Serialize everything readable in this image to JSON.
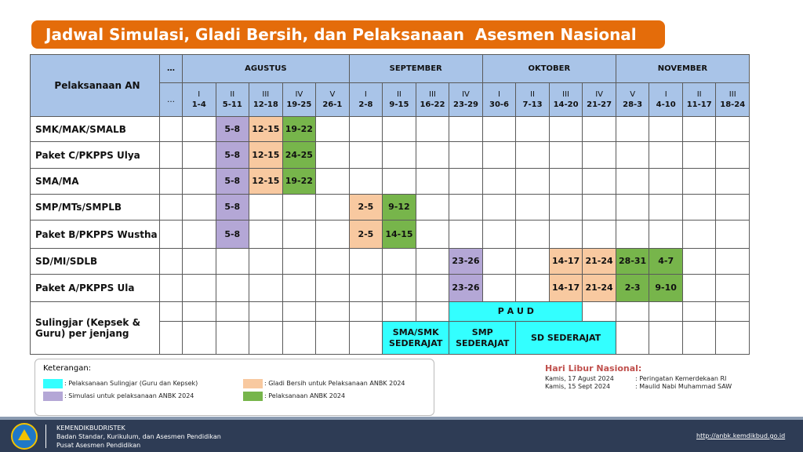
{
  "title": "Jadwal Simulasi, Gladi Bersih, dan Pelaksanaan  Asesmen Nasional",
  "table": {
    "header": "Pelaksanaan AN",
    "ellipsis": [
      "…",
      "…"
    ],
    "months": [
      {
        "name": "AGUSTUS",
        "weeks": [
          {
            "roman": "I",
            "dates": "1-4"
          },
          {
            "roman": "II",
            "dates": "5-11"
          },
          {
            "roman": "III",
            "dates": "12-18"
          },
          {
            "roman": "IV",
            "dates": "19-25"
          },
          {
            "roman": "V",
            "dates": "26-1"
          }
        ]
      },
      {
        "name": "SEPTEMBER",
        "weeks": [
          {
            "roman": "I",
            "dates": "2-8"
          },
          {
            "roman": "II",
            "dates": "9-15"
          },
          {
            "roman": "III",
            "dates": "16-22"
          },
          {
            "roman": "IV",
            "dates": "23-29"
          }
        ]
      },
      {
        "name": "OKTOBER",
        "weeks": [
          {
            "roman": "I",
            "dates": "30-6"
          },
          {
            "roman": "II",
            "dates": "7-13"
          },
          {
            "roman": "III",
            "dates": "14-20"
          },
          {
            "roman": "IV",
            "dates": "21-27"
          }
        ]
      },
      {
        "name": "NOVEMBER",
        "weeks": [
          {
            "roman": "V",
            "dates": "28-3"
          },
          {
            "roman": "I",
            "dates": "4-10"
          },
          {
            "roman": "II",
            "dates": "11-17"
          },
          {
            "roman": "III",
            "dates": "18-24"
          }
        ]
      }
    ],
    "rows": [
      {
        "label": "SMK/MAK/SMALB",
        "cells": [
          null,
          {
            "text": "5-8",
            "color": "#b4a7d6"
          },
          {
            "text": "12-15",
            "color": "#f8c9a0"
          },
          {
            "text": "19-22",
            "color": "#77b54b"
          },
          null,
          null,
          null,
          null,
          null,
          null,
          null,
          null,
          null,
          null,
          null,
          null,
          null
        ]
      },
      {
        "label": "Paket C/PKPPS Ulya",
        "cells": [
          null,
          {
            "text": "5-8",
            "color": "#b4a7d6"
          },
          {
            "text": "12-15",
            "color": "#f8c9a0"
          },
          {
            "text": "24-25",
            "color": "#77b54b"
          },
          null,
          null,
          null,
          null,
          null,
          null,
          null,
          null,
          null,
          null,
          null,
          null,
          null
        ]
      },
      {
        "label": "SMA/MA",
        "cells": [
          null,
          {
            "text": "5-8",
            "color": "#b4a7d6"
          },
          {
            "text": "12-15",
            "color": "#f8c9a0"
          },
          {
            "text": "19-22",
            "color": "#77b54b"
          },
          null,
          null,
          null,
          null,
          null,
          null,
          null,
          null,
          null,
          null,
          null,
          null,
          null
        ]
      },
      {
        "label": "SMP/MTs/SMPLB",
        "cells": [
          null,
          {
            "text": "5-8",
            "color": "#b4a7d6"
          },
          null,
          null,
          null,
          {
            "text": "2-5",
            "color": "#f8c9a0"
          },
          {
            "text": "9-12",
            "color": "#77b54b"
          },
          null,
          null,
          null,
          null,
          null,
          null,
          null,
          null,
          null,
          null
        ]
      },
      {
        "label": "Paket B/PKPPS Wustha",
        "cells": [
          null,
          {
            "text": "5-8",
            "color": "#b4a7d6"
          },
          null,
          null,
          null,
          {
            "text": "2-5",
            "color": "#f8c9a0"
          },
          {
            "text": "14-15",
            "color": "#77b54b"
          },
          null,
          null,
          null,
          null,
          null,
          null,
          null,
          null,
          null,
          null
        ]
      },
      {
        "label": "SD/MI/SDLB",
        "cells": [
          null,
          null,
          null,
          null,
          null,
          null,
          null,
          null,
          {
            "text": "23-26",
            "color": "#b4a7d6"
          },
          null,
          null,
          {
            "text": "14-17",
            "color": "#f8c9a0"
          },
          {
            "text": "21-24",
            "color": "#f8c9a0"
          },
          {
            "text": "28-31",
            "color": "#77b54b"
          },
          {
            "text": "4-7",
            "color": "#77b54b"
          },
          null,
          null
        ]
      },
      {
        "label": "Paket A/PKPPS Ula",
        "cells": [
          null,
          null,
          null,
          null,
          null,
          null,
          null,
          null,
          {
            "text": "23-26",
            "color": "#b4a7d6"
          },
          null,
          null,
          {
            "text": "14-17",
            "color": "#f8c9a0"
          },
          {
            "text": "21-24",
            "color": "#f8c9a0"
          },
          {
            "text": "2-3",
            "color": "#77b54b"
          },
          {
            "text": "9-10",
            "color": "#77b54b"
          },
          null,
          null
        ]
      },
      {
        "label": "Sulingjar (Kepsek & Guru) per jenjang",
        "subrows": [
          [
            null,
            null,
            null,
            null,
            null,
            null,
            null,
            null,
            {
              "text": "P A U D",
              "color": "#33ffff",
              "colspan": 4
            },
            null,
            null,
            null,
            null,
            null
          ],
          [
            null,
            null,
            null,
            null,
            null,
            null,
            {
              "text": "SMA/SMK SEDERAJAT",
              "color": "#33ffff",
              "colspan": 2
            },
            {
              "text": "SMP SEDERAJAT",
              "color": "#33ffff",
              "colspan": 2
            },
            {
              "text": "SD SEDERAJAT",
              "color": "#33ffff",
              "colspan": 3
            },
            null,
            null,
            null,
            null
          ]
        ]
      }
    ]
  },
  "legend": {
    "title": "Keterangan:",
    "items": [
      {
        "label": ": Pelaksanaan Sulingjar (Guru dan Kepsek)",
        "color": "#33ffff"
      },
      {
        "label": ": Simulasi untuk pelaksanaan ANBK 2024",
        "color": "#b4a7d6"
      },
      {
        "label": ": Gladi Bersih untuk Pelaksanaan ANBK 2024",
        "color": "#f8c9a0"
      },
      {
        "label": ": Pelaksanaan ANBK 2024",
        "color": "#77b54b"
      }
    ]
  },
  "holidays": {
    "title": "Hari Libur Nasional:",
    "items": [
      {
        "date": "Kamis, 17 Agust 2024",
        "name": ": Peringatan Kemerdekaan RI"
      },
      {
        "date": "Kamis, 15 Sept 2024",
        "name": ": Maulid Nabi Muhammad SAW"
      }
    ]
  },
  "footer": {
    "org": [
      "KEMENDIKBUDRISTEK",
      "Badan Standar, Kurikulum, dan Asesmen Pendidikan",
      "Pusat Asesmen Pendidikan"
    ],
    "url": "http://anbk.kemdikbud.go.id"
  }
}
